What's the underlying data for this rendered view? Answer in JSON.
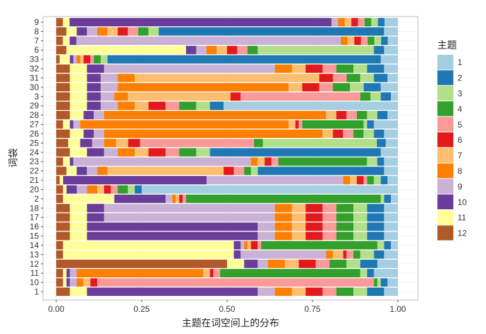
{
  "chart_data": {
    "type": "bar",
    "orientation": "horizontal",
    "stacked": true,
    "xlabel": "主题在词空间上的分布",
    "ylabel": "词袋",
    "xlim": [
      0,
      1
    ],
    "x_ticks": [
      "0.00",
      "0.25",
      "0.50",
      "0.75",
      "1.00"
    ],
    "legend_title": "主题",
    "legend_position": "right",
    "grid": true,
    "topics": [
      "1",
      "2",
      "3",
      "4",
      "5",
      "6",
      "7",
      "8",
      "9",
      "10",
      "11",
      "12"
    ],
    "colors": [
      "#A6CEE3",
      "#1F78B4",
      "#B2DF8A",
      "#33A02C",
      "#FB9A99",
      "#E31A1C",
      "#FDBF6F",
      "#FF7F00",
      "#CAB2D6",
      "#6A3D9A",
      "#FFFF99",
      "#B15928"
    ],
    "stack_order": [
      "12",
      "11",
      "10",
      "9",
      "8",
      "7",
      "6",
      "5",
      "4",
      "3",
      "2",
      "1"
    ],
    "categories": [
      "1",
      "10",
      "11",
      "12",
      "13",
      "14",
      "15",
      "16",
      "17",
      "18",
      "2",
      "20",
      "21",
      "22",
      "23",
      "24",
      "25",
      "26",
      "27",
      "28",
      "29",
      "3",
      "30",
      "31",
      "32",
      "33",
      "6",
      "7",
      "8",
      "9"
    ],
    "rows": [
      {
        "12": 0.04,
        "11": 0.05,
        "10": 0.5,
        "9": 0.05,
        "8": 0.05,
        "7": 0.04,
        "6": 0.05,
        "5": 0.04,
        "4": 0.05,
        "3": 0.04,
        "2": 0.05,
        "1": 0.04
      },
      {
        "12": 0.02,
        "11": 0.01,
        "10": 0.01,
        "9": 0.02,
        "8": 0.02,
        "7": 0.02,
        "6": 0.02,
        "5": 0.81,
        "4": 0.01,
        "3": 0.01,
        "2": 0.02,
        "1": 0.03
      },
      {
        "12": 0.02,
        "11": 0.01,
        "10": 0.01,
        "9": 0.02,
        "8": 0.37,
        "7": 0.02,
        "6": 0.01,
        "5": 0.02,
        "4": 0.41,
        "3": 0.02,
        "2": 0.02,
        "1": 0.07
      },
      {
        "12": 0.5,
        "11": 0.05,
        "10": 0.04,
        "9": 0.03,
        "8": 0.05,
        "7": 0.04,
        "6": 0.05,
        "5": 0.04,
        "4": 0.05,
        "3": 0.04,
        "2": 0.05,
        "1": 0.06
      },
      {
        "12": 0.02,
        "11": 0.5,
        "10": 0.02,
        "9": 0.25,
        "8": 0.02,
        "7": 0.03,
        "6": 0.01,
        "5": 0.02,
        "4": 0.02,
        "3": 0.04,
        "2": 0.03,
        "1": 0.04
      },
      {
        "12": 0.02,
        "11": 0.5,
        "10": 0.02,
        "9": 0.01,
        "8": 0.01,
        "7": 0.01,
        "6": 0.02,
        "5": 0.01,
        "4": 0.34,
        "3": 0.02,
        "2": 0.02,
        "1": 0.02
      },
      {
        "12": 0.04,
        "11": 0.05,
        "10": 0.5,
        "9": 0.05,
        "8": 0.05,
        "7": 0.04,
        "6": 0.05,
        "5": 0.04,
        "4": 0.05,
        "3": 0.04,
        "2": 0.05,
        "1": 0.04
      },
      {
        "12": 0.04,
        "11": 0.05,
        "10": 0.5,
        "9": 0.05,
        "8": 0.05,
        "7": 0.04,
        "6": 0.05,
        "5": 0.04,
        "4": 0.05,
        "3": 0.04,
        "2": 0.05,
        "1": 0.04
      },
      {
        "12": 0.04,
        "11": 0.05,
        "10": 0.05,
        "9": 0.5,
        "8": 0.05,
        "7": 0.04,
        "6": 0.05,
        "5": 0.04,
        "4": 0.05,
        "3": 0.04,
        "2": 0.05,
        "1": 0.04
      },
      {
        "12": 0.04,
        "11": 0.05,
        "10": 0.05,
        "9": 0.5,
        "8": 0.05,
        "7": 0.04,
        "6": 0.05,
        "5": 0.04,
        "4": 0.05,
        "3": 0.04,
        "2": 0.05,
        "1": 0.04
      },
      {
        "12": 0.02,
        "11": 0.15,
        "10": 0.15,
        "9": 0.02,
        "8": 0.01,
        "7": 0.01,
        "6": 0.01,
        "5": 0.01,
        "4": 0.57,
        "3": 0.01,
        "2": 0.02,
        "1": 0.02
      },
      {
        "12": 0.02,
        "11": 0.01,
        "10": 0.03,
        "9": 0.03,
        "8": 0.03,
        "7": 0.02,
        "6": 0.02,
        "5": 0.02,
        "4": 0.03,
        "3": 0.02,
        "2": 0.02,
        "1": 0.75
      },
      {
        "12": 0.01,
        "11": 0.01,
        "10": 0.42,
        "9": 0.4,
        "8": 0.02,
        "7": 0.02,
        "6": 0.02,
        "5": 0.01,
        "4": 0.02,
        "3": 0.02,
        "2": 0.02,
        "1": 0.03
      },
      {
        "12": 0.03,
        "11": 0.03,
        "10": 0.03,
        "9": 0.03,
        "8": 0.03,
        "7": 0.34,
        "6": 0.03,
        "5": 0.03,
        "4": 0.02,
        "3": 0.02,
        "2": 0.37,
        "1": 0.04
      },
      {
        "12": 0.02,
        "11": 0.02,
        "10": 0.01,
        "9": 0.52,
        "8": 0.02,
        "7": 0.02,
        "6": 0.02,
        "5": 0.02,
        "4": 0.26,
        "3": 0.03,
        "2": 0.02,
        "1": 0.04
      },
      {
        "12": 0.04,
        "11": 0.05,
        "10": 0.05,
        "9": 0.04,
        "8": 0.05,
        "7": 0.04,
        "6": 0.05,
        "5": 0.04,
        "4": 0.05,
        "3": 0.04,
        "2": 0.5,
        "1": 0.05
      },
      {
        "12": 0.04,
        "11": 0.04,
        "10": 0.04,
        "9": 0.04,
        "8": 0.04,
        "7": 0.04,
        "6": 0.04,
        "5": 0.38,
        "4": 0.03,
        "3": 0.38,
        "2": 0.03,
        "1": 0.04
      },
      {
        "12": 0.04,
        "11": 0.04,
        "10": 0.03,
        "9": 0.03,
        "8": 0.64,
        "7": 0.03,
        "6": 0.03,
        "5": 0.03,
        "4": 0.03,
        "3": 0.03,
        "2": 0.03,
        "1": 0.04
      },
      {
        "12": 0.02,
        "11": 0.02,
        "10": 0.01,
        "9": 0.02,
        "8": 0.61,
        "7": 0.02,
        "6": 0.01,
        "5": 0.01,
        "4": 0.18,
        "3": 0.01,
        "2": 0.02,
        "1": 0.07
      },
      {
        "12": 0.04,
        "11": 0.04,
        "10": 0.03,
        "9": 0.03,
        "8": 0.65,
        "7": 0.03,
        "6": 0.03,
        "5": 0.03,
        "4": 0.03,
        "3": 0.03,
        "2": 0.03,
        "1": 0.03
      },
      {
        "12": 0.04,
        "11": 0.05,
        "10": 0.04,
        "9": 0.05,
        "8": 0.05,
        "7": 0.04,
        "6": 0.05,
        "5": 0.04,
        "4": 0.05,
        "3": 0.04,
        "2": 0.04,
        "1": 0.51
      },
      {
        "12": 0.04,
        "11": 0.05,
        "10": 0.04,
        "9": 0.04,
        "8": 0.04,
        "7": 0.3,
        "6": 0.03,
        "5": 0.35,
        "4": 0.03,
        "3": 0.03,
        "2": 0.03,
        "1": 0.02
      },
      {
        "12": 0.04,
        "11": 0.05,
        "10": 0.04,
        "9": 0.05,
        "8": 0.5,
        "7": 0.04,
        "6": 0.05,
        "5": 0.04,
        "4": 0.05,
        "3": 0.04,
        "2": 0.05,
        "1": 0.05
      },
      {
        "12": 0.04,
        "11": 0.05,
        "10": 0.04,
        "9": 0.05,
        "8": 0.05,
        "7": 0.54,
        "6": 0.04,
        "5": 0.04,
        "4": 0.04,
        "3": 0.04,
        "2": 0.04,
        "1": 0.03
      },
      {
        "12": 0.04,
        "11": 0.05,
        "10": 0.05,
        "9": 0.5,
        "8": 0.05,
        "7": 0.04,
        "6": 0.05,
        "5": 0.04,
        "4": 0.05,
        "3": 0.04,
        "2": 0.05,
        "1": 0.04
      },
      {
        "12": 0.01,
        "11": 0.03,
        "10": 0.01,
        "9": 0.01,
        "8": 0.01,
        "7": 0.01,
        "6": 0.02,
        "5": 0.01,
        "4": 0.02,
        "3": 0.02,
        "2": 0.8,
        "1": 0.05
      },
      {
        "12": 0.03,
        "11": 0.35,
        "10": 0.03,
        "9": 0.03,
        "8": 0.03,
        "7": 0.03,
        "6": 0.03,
        "5": 0.03,
        "4": 0.03,
        "3": 0.34,
        "2": 0.03,
        "1": 0.04
      },
      {
        "12": 0.02,
        "11": 0.02,
        "10": 0.02,
        "9": 0.79,
        "8": 0.02,
        "7": 0.02,
        "6": 0.02,
        "5": 0.02,
        "4": 0.02,
        "3": 0.02,
        "2": 0.02,
        "1": 0.03
      },
      {
        "12": 0.03,
        "11": 0.03,
        "10": 0.03,
        "9": 0.03,
        "8": 0.03,
        "7": 0.03,
        "6": 0.03,
        "5": 0.03,
        "4": 0.03,
        "3": 0.03,
        "2": 0.66,
        "1": 0.04
      },
      {
        "12": 0.02,
        "11": 0.02,
        "10": 0.79,
        "9": 0.02,
        "8": 0.02,
        "7": 0.02,
        "6": 0.02,
        "5": 0.02,
        "4": 0.02,
        "3": 0.02,
        "2": 0.02,
        "1": 0.04
      }
    ]
  }
}
